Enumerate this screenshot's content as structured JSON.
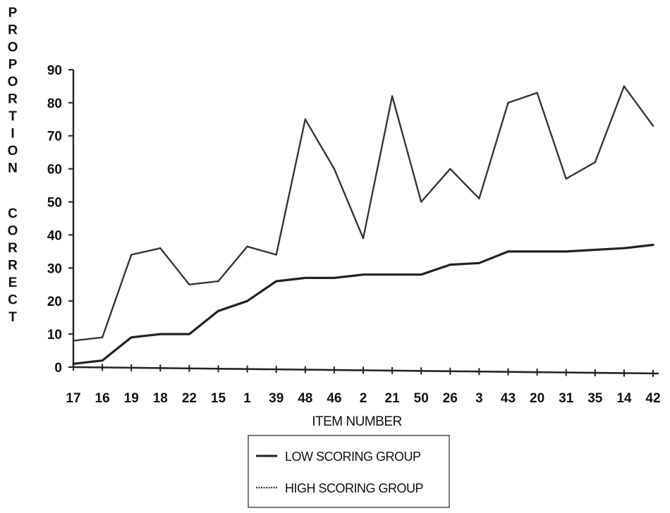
{
  "chart_data": {
    "type": "line",
    "title": "",
    "ylabel": "PROPORTION CORRECT",
    "xlabel": "ITEM NUMBER",
    "ylim": [
      0,
      90
    ],
    "yticks": [
      "0",
      "10",
      "20",
      "30",
      "40",
      "50",
      "60",
      "70",
      "80",
      "90"
    ],
    "categories": [
      "17",
      "16",
      "19",
      "18",
      "22",
      "15",
      "1",
      "39",
      "48",
      "46",
      "2",
      "21",
      "50",
      "26",
      "3",
      "43",
      "20",
      "31",
      "35",
      "14",
      "42"
    ],
    "grid": false,
    "legend_position": "bottom-center",
    "series": [
      {
        "name": "LOW SCORING GROUP",
        "style": "solid",
        "color": "#222222",
        "values": [
          1,
          2,
          9,
          10,
          10,
          17,
          20,
          26,
          27,
          27,
          28,
          28,
          28,
          31,
          31.5,
          35,
          35,
          35,
          35.5,
          36,
          37
        ]
      },
      {
        "name": "HIGH SCORING GROUP",
        "style": "dotted",
        "color": "#333333",
        "values": [
          8,
          9,
          34,
          36,
          25,
          26,
          36.5,
          34,
          75,
          60,
          39,
          82,
          50,
          60,
          51,
          80,
          83,
          57,
          62,
          85,
          73
        ]
      }
    ]
  }
}
